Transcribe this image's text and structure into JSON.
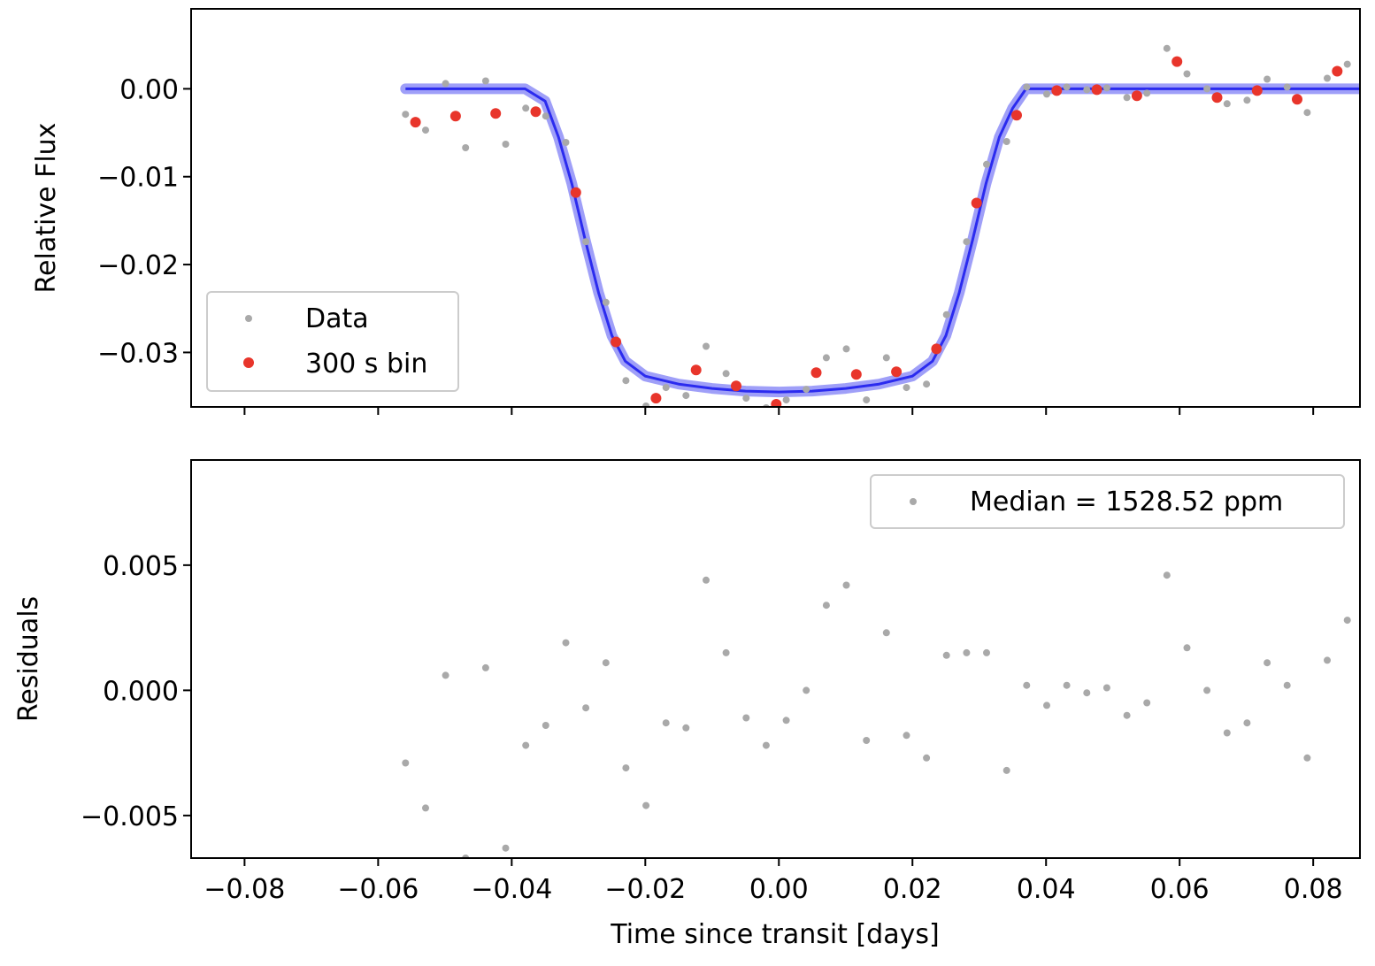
{
  "chart_data": [
    {
      "type": "scatter",
      "panel": "top",
      "title": "",
      "xlabel": "",
      "ylabel": "Relative Flux",
      "xlim": [
        -0.088,
        0.087
      ],
      "ylim": [
        -0.0362,
        0.0091
      ],
      "yticks": [
        0.0,
        -0.01,
        -0.02,
        -0.03
      ],
      "ytick_labels": [
        "0.00",
        "−0.01",
        "−0.02",
        "−0.03"
      ],
      "grid": false,
      "legend_position": "lower-left",
      "series": [
        {
          "name": "Data",
          "color": "#a9a9a9",
          "marker": "dot-small",
          "x": [
            -0.0559,
            -0.0529,
            -0.0499,
            -0.0469,
            -0.0439,
            -0.0409,
            -0.0379,
            -0.0349,
            -0.0319,
            -0.0289,
            -0.0259,
            -0.0229,
            -0.0199,
            -0.0169,
            -0.0139,
            -0.0109,
            -0.0079,
            -0.0049,
            -0.0019,
            0.0011,
            0.0041,
            0.0071,
            0.0101,
            0.0131,
            0.0161,
            0.0191,
            0.0221,
            0.0251,
            0.0281,
            0.0311,
            0.0341,
            0.0371,
            0.0401,
            0.0431,
            0.0461,
            0.0491,
            0.0521,
            0.0551,
            0.0581,
            0.0611,
            0.0641,
            0.0671,
            0.0701,
            0.0731,
            0.0761,
            0.0791,
            0.0821,
            0.0851
          ],
          "y": [
            -0.0029,
            -0.0047,
            0.0006,
            -0.0067,
            0.0009,
            -0.0063,
            -0.0022,
            -0.0031,
            -0.0061,
            -0.0174,
            -0.0243,
            -0.0332,
            -0.0361,
            -0.034,
            -0.0349,
            -0.0293,
            -0.0324,
            -0.0352,
            -0.0363,
            -0.0354,
            -0.0342,
            -0.0306,
            -0.0296,
            -0.0354,
            -0.0306,
            -0.034,
            -0.0336,
            -0.0257,
            -0.0174,
            -0.0086,
            -0.006,
            0.0002,
            -0.0006,
            0.0002,
            -0.0001,
            0.0001,
            -0.001,
            -0.0005,
            0.0046,
            0.0017,
            0.0,
            -0.0017,
            -0.0013,
            0.0011,
            0.0002,
            -0.0027,
            0.0012,
            0.0028
          ]
        },
        {
          "name": "300 s bin",
          "color": "#e8352b",
          "marker": "dot",
          "x": [
            -0.0544,
            -0.0484,
            -0.0424,
            -0.0364,
            -0.0304,
            -0.0244,
            -0.0184,
            -0.0124,
            -0.0064,
            -0.0004,
            0.0056,
            0.0116,
            0.0176,
            0.0236,
            0.0296,
            0.0356,
            0.0416,
            0.0476,
            0.0536,
            0.0596,
            0.0656,
            0.0716,
            0.0776,
            0.0836
          ],
          "y": [
            -0.0038,
            -0.0031,
            -0.0028,
            -0.0026,
            -0.0118,
            -0.0288,
            -0.0352,
            -0.032,
            -0.0338,
            -0.0359,
            -0.0323,
            -0.0325,
            -0.0322,
            -0.0296,
            -0.013,
            -0.003,
            -0.0002,
            -0.0001,
            -0.0008,
            0.0031,
            -0.001,
            -0.0002,
            -0.0012,
            0.002
          ]
        },
        {
          "name": "",
          "type": "line",
          "color": "#2b2bef",
          "x": [
            -0.0559,
            -0.038,
            -0.035,
            -0.033,
            -0.031,
            -0.029,
            -0.027,
            -0.025,
            -0.023,
            -0.02,
            -0.015,
            -0.01,
            -0.005,
            0.0,
            0.005,
            0.01,
            0.015,
            0.02,
            0.023,
            0.025,
            0.027,
            0.029,
            0.031,
            0.033,
            0.035,
            0.037,
            0.05,
            0.07,
            0.087
          ],
          "y": [
            0.0,
            0.0,
            -0.0014,
            -0.0055,
            -0.0108,
            -0.0172,
            -0.0232,
            -0.0281,
            -0.031,
            -0.0327,
            -0.0336,
            -0.0341,
            -0.0344,
            -0.0345,
            -0.0344,
            -0.0341,
            -0.0336,
            -0.0327,
            -0.031,
            -0.0281,
            -0.0232,
            -0.0172,
            -0.0108,
            -0.0055,
            -0.0022,
            0.0,
            0.0,
            0.0,
            0.0
          ]
        }
      ]
    },
    {
      "type": "scatter",
      "panel": "bottom",
      "title": "",
      "xlabel": "Time since transit [days]",
      "ylabel": "Residuals",
      "xlim": [
        -0.088,
        0.087
      ],
      "ylim": [
        -0.0067,
        0.0092
      ],
      "xticks": [
        -0.08,
        -0.06,
        -0.04,
        -0.02,
        0.0,
        0.02,
        0.04,
        0.06,
        0.08
      ],
      "xtick_labels": [
        "−0.08",
        "−0.06",
        "−0.04",
        "−0.02",
        "0.00",
        "0.02",
        "0.04",
        "0.06",
        "0.08"
      ],
      "yticks": [
        0.005,
        0.0,
        -0.005
      ],
      "ytick_labels": [
        "0.005",
        "0.000",
        "−0.005"
      ],
      "grid": false,
      "legend_position": "upper-right",
      "series": [
        {
          "name": "Median = 1528.52 ppm",
          "color": "#a9a9a9",
          "marker": "dot-small",
          "x": [
            -0.0559,
            -0.0529,
            -0.0499,
            -0.0469,
            -0.0439,
            -0.0409,
            -0.0379,
            -0.0349,
            -0.0319,
            -0.0289,
            -0.0259,
            -0.0229,
            -0.0199,
            -0.0169,
            -0.0139,
            -0.0109,
            -0.0079,
            -0.0049,
            -0.0019,
            0.0011,
            0.0041,
            0.0071,
            0.0101,
            0.0131,
            0.0161,
            0.0191,
            0.0221,
            0.0251,
            0.0281,
            0.0311,
            0.0341,
            0.0371,
            0.0401,
            0.0431,
            0.0461,
            0.0491,
            0.0521,
            0.0551,
            0.0581,
            0.0611,
            0.0641,
            0.0671,
            0.0701,
            0.0731,
            0.0761,
            0.0791,
            0.0821,
            0.0851
          ],
          "y": [
            -0.0029,
            -0.0047,
            0.0006,
            -0.0067,
            0.0009,
            -0.0063,
            -0.0022,
            -0.0014,
            0.0019,
            -0.0007,
            0.0011,
            -0.0031,
            -0.0046,
            -0.0013,
            -0.0015,
            0.0044,
            0.0015,
            -0.0011,
            -0.0022,
            -0.0012,
            0.0,
            0.0034,
            0.0042,
            -0.002,
            0.0023,
            -0.0018,
            -0.0027,
            0.0014,
            0.0015,
            0.0015,
            -0.0032,
            0.0002,
            -0.0006,
            0.0002,
            -0.0001,
            0.0001,
            -0.001,
            -0.0005,
            0.0046,
            0.0017,
            0.0,
            -0.0017,
            -0.0013,
            0.0011,
            0.0002,
            -0.0027,
            0.0012,
            0.0028
          ]
        }
      ]
    }
  ]
}
